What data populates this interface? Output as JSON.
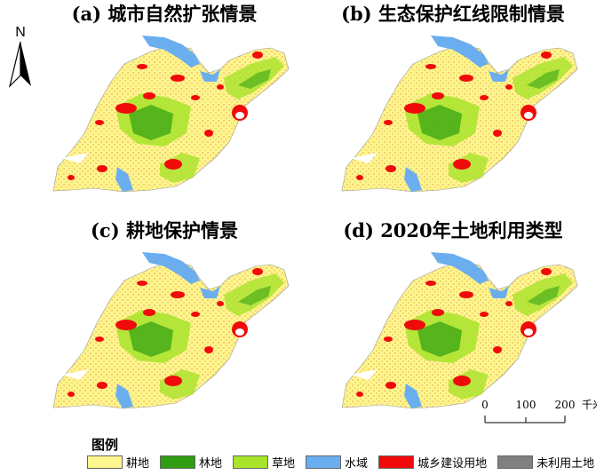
{
  "panels": [
    {
      "id": "a",
      "title": "(a) 城市自然扩张情景"
    },
    {
      "id": "b",
      "title": "(b) 生态保护红线限制情景"
    },
    {
      "id": "c",
      "title": "(c) 耕地保护情景"
    },
    {
      "id": "d",
      "title": "(d) 2020年土地利用类型"
    }
  ],
  "north_label": "N",
  "scale_bar": {
    "ticks": [
      "0",
      "100",
      "200"
    ],
    "unit": "千米"
  },
  "legend": {
    "title": "图例",
    "items": [
      {
        "label": "耕地",
        "color": "#fdf58e"
      },
      {
        "label": "林地",
        "color": "#2e9e10"
      },
      {
        "label": "草地",
        "color": "#a7e42a"
      },
      {
        "label": "水域",
        "color": "#6aaef0"
      },
      {
        "label": "城乡建设用地",
        "color": "#f00a0a"
      },
      {
        "label": "未利用土地",
        "color": "#808080"
      }
    ]
  }
}
